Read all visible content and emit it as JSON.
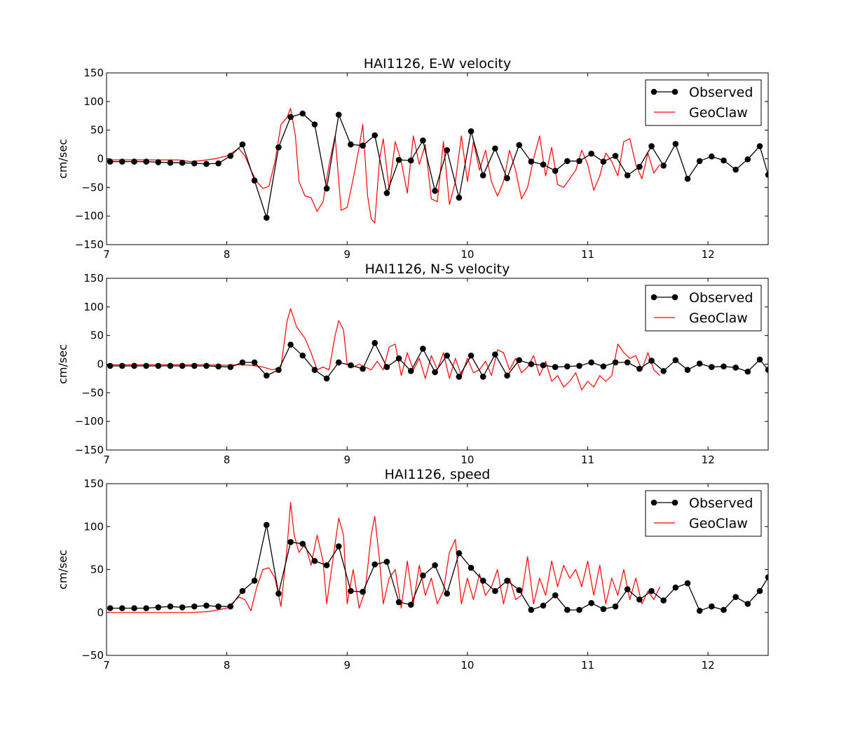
{
  "chart_data": [
    {
      "type": "line",
      "title": "HAI1126, E-W velocity",
      "ylabel": "cm/sec",
      "xlim": [
        7,
        12.5
      ],
      "ylim": [
        -150,
        150
      ],
      "xticks": [
        7,
        8,
        9,
        10,
        11,
        12
      ],
      "yticks": [
        -150,
        -100,
        -50,
        0,
        50,
        100,
        150
      ],
      "legend": {
        "placement": "top-right",
        "entries": [
          "Observed",
          "GeoClaw"
        ]
      },
      "series": [
        {
          "name": "Observed",
          "color": "#000000",
          "marker": "circle",
          "x": [
            7.03,
            7.13,
            7.23,
            7.33,
            7.43,
            7.53,
            7.63,
            7.73,
            7.83,
            7.93,
            8.03,
            8.13,
            8.23,
            8.33,
            8.43,
            8.53,
            8.63,
            8.73,
            8.83,
            8.93,
            9.03,
            9.13,
            9.23,
            9.33,
            9.43,
            9.53,
            9.63,
            9.73,
            9.83,
            9.93,
            10.03,
            10.13,
            10.23,
            10.33,
            10.43,
            10.53,
            10.63,
            10.73,
            10.83,
            10.93,
            11.03,
            11.13,
            11.23,
            11.33,
            11.43,
            11.53,
            11.63,
            11.73,
            11.83,
            11.93,
            12.03,
            12.13,
            12.23,
            12.33,
            12.43,
            12.5
          ],
          "y": [
            -5,
            -5,
            -5,
            -5,
            -6,
            -7,
            -7,
            -8,
            -9,
            -8,
            5,
            25,
            -38,
            -103,
            20,
            73,
            79,
            60,
            -52,
            77,
            25,
            23,
            41,
            -60,
            -2,
            -3,
            32,
            -56,
            15,
            -68,
            48,
            -29,
            18,
            -34,
            24,
            -5,
            -10,
            -21,
            -4,
            -4,
            9,
            -5,
            5,
            -29,
            -14,
            22,
            -12,
            26,
            -35,
            -4,
            4,
            -3,
            -19,
            -1,
            22,
            -28
          ]
        },
        {
          "name": "GeoClaw",
          "color": "#ff0000",
          "x": [
            7.0,
            7.2,
            7.4,
            7.6,
            7.7,
            7.8,
            7.9,
            8.0,
            8.1,
            8.15,
            8.2,
            8.25,
            8.3,
            8.35,
            8.4,
            8.45,
            8.5,
            8.53,
            8.57,
            8.6,
            8.65,
            8.7,
            8.75,
            8.8,
            8.85,
            8.9,
            8.95,
            9.0,
            9.05,
            9.1,
            9.13,
            9.17,
            9.2,
            9.23,
            9.27,
            9.3,
            9.35,
            9.4,
            9.45,
            9.5,
            9.55,
            9.6,
            9.65,
            9.7,
            9.75,
            9.8,
            9.85,
            9.9,
            9.95,
            10.0,
            10.05,
            10.1,
            10.15,
            10.2,
            10.25,
            10.3,
            10.35,
            10.4,
            10.45,
            10.5,
            10.55,
            10.6,
            10.65,
            10.7,
            10.75,
            10.8,
            10.85,
            10.9,
            10.95,
            11.0,
            11.05,
            11.1,
            11.15,
            11.2,
            11.25,
            11.3,
            11.35,
            11.4,
            11.45,
            11.5,
            11.55,
            11.6
          ],
          "y": [
            -2,
            -2,
            -2,
            -2,
            -5,
            -3,
            0,
            5,
            18,
            5,
            -20,
            -40,
            -52,
            -48,
            -5,
            60,
            72,
            88,
            40,
            -40,
            -65,
            -68,
            -92,
            -75,
            -10,
            40,
            -90,
            -85,
            -35,
            20,
            60,
            -65,
            -105,
            -112,
            0,
            35,
            -55,
            30,
            -5,
            -60,
            40,
            -10,
            25,
            -70,
            -75,
            30,
            -80,
            -40,
            40,
            -40,
            30,
            -20,
            15,
            -40,
            -65,
            -40,
            15,
            -20,
            -70,
            -50,
            0,
            40,
            -30,
            20,
            -45,
            -50,
            -35,
            -20,
            15,
            -10,
            -55,
            -30,
            10,
            -5,
            -30,
            30,
            35,
            -10,
            -35,
            10,
            -25,
            -10
          ]
        }
      ]
    },
    {
      "type": "line",
      "title": "HAI1126, N-S velocity",
      "ylabel": "cm/sec",
      "xlim": [
        7,
        12.5
      ],
      "ylim": [
        -150,
        150
      ],
      "xticks": [
        7,
        8,
        9,
        10,
        11,
        12
      ],
      "yticks": [
        -150,
        -100,
        -50,
        0,
        50,
        100,
        150
      ],
      "legend": {
        "placement": "top-right",
        "entries": [
          "Observed",
          "GeoClaw"
        ]
      },
      "series": [
        {
          "name": "Observed",
          "color": "#000000",
          "marker": "circle",
          "x": [
            7.03,
            7.13,
            7.23,
            7.33,
            7.43,
            7.53,
            7.63,
            7.73,
            7.83,
            7.93,
            8.03,
            8.13,
            8.23,
            8.33,
            8.43,
            8.53,
            8.63,
            8.73,
            8.83,
            8.93,
            9.03,
            9.13,
            9.23,
            9.33,
            9.43,
            9.53,
            9.63,
            9.73,
            9.83,
            9.93,
            10.03,
            10.13,
            10.23,
            10.33,
            10.43,
            10.53,
            10.63,
            10.73,
            10.83,
            10.93,
            11.03,
            11.13,
            11.23,
            11.33,
            11.43,
            11.53,
            11.63,
            11.73,
            11.83,
            11.93,
            12.03,
            12.13,
            12.23,
            12.33,
            12.43,
            12.5
          ],
          "y": [
            -3,
            -3,
            -3,
            -3,
            -3,
            -3,
            -3,
            -3,
            -3,
            -4,
            -5,
            3,
            3,
            -20,
            -10,
            34,
            15,
            -10,
            -25,
            3,
            -2,
            -8,
            37,
            -5,
            10,
            -12,
            27,
            -14,
            15,
            -22,
            15,
            -22,
            17,
            -20,
            7,
            0,
            -2,
            -5,
            -4,
            -3,
            3,
            -4,
            3,
            3,
            -8,
            6,
            -12,
            7,
            -10,
            1,
            -5,
            -4,
            -6,
            -13,
            8,
            -10
          ]
        },
        {
          "name": "GeoClaw",
          "color": "#ff0000",
          "x": [
            7.0,
            7.4,
            7.8,
            8.0,
            8.1,
            8.2,
            8.3,
            8.38,
            8.45,
            8.5,
            8.53,
            8.58,
            8.65,
            8.7,
            8.75,
            8.8,
            8.85,
            8.9,
            8.93,
            8.97,
            9.0,
            9.05,
            9.1,
            9.15,
            9.2,
            9.25,
            9.3,
            9.35,
            9.4,
            9.45,
            9.5,
            9.55,
            9.6,
            9.65,
            9.7,
            9.75,
            9.8,
            9.85,
            9.9,
            9.95,
            10.0,
            10.05,
            10.1,
            10.15,
            10.2,
            10.25,
            10.3,
            10.35,
            10.4,
            10.45,
            10.5,
            10.55,
            10.6,
            10.65,
            10.7,
            10.75,
            10.8,
            10.85,
            10.9,
            10.95,
            11.0,
            11.05,
            11.1,
            11.15,
            11.2,
            11.25,
            11.3,
            11.35,
            11.4,
            11.45,
            11.5,
            11.55,
            11.6
          ],
          "y": [
            -1,
            -1,
            -1,
            -2,
            -1,
            -2,
            -5,
            -10,
            -5,
            75,
            97,
            65,
            45,
            20,
            -10,
            -5,
            -10,
            50,
            76,
            60,
            0,
            -5,
            0,
            -5,
            -10,
            5,
            -10,
            30,
            35,
            -20,
            20,
            -10,
            10,
            -25,
            15,
            -10,
            20,
            -25,
            10,
            -20,
            10,
            -15,
            -10,
            5,
            -20,
            25,
            20,
            -10,
            10,
            -15,
            -5,
            15,
            -20,
            5,
            -30,
            -20,
            -40,
            -30,
            -15,
            -45,
            -30,
            -40,
            -20,
            -30,
            -20,
            35,
            20,
            10,
            15,
            -10,
            20,
            -10,
            -20
          ]
        }
      ]
    },
    {
      "type": "line",
      "title": "HAI1126, speed",
      "ylabel": "cm/sec",
      "xlim": [
        7,
        12.5
      ],
      "ylim": [
        -50,
        150
      ],
      "xticks": [
        7,
        8,
        9,
        10,
        11,
        12
      ],
      "yticks": [
        -50,
        0,
        50,
        100,
        150
      ],
      "legend": {
        "placement": "top-right",
        "entries": [
          "Observed",
          "GeoClaw"
        ]
      },
      "series": [
        {
          "name": "Observed",
          "color": "#000000",
          "marker": "circle",
          "x": [
            7.03,
            7.13,
            7.23,
            7.33,
            7.43,
            7.53,
            7.63,
            7.73,
            7.83,
            7.93,
            8.03,
            8.13,
            8.23,
            8.33,
            8.43,
            8.53,
            8.63,
            8.73,
            8.83,
            8.93,
            9.03,
            9.13,
            9.23,
            9.33,
            9.43,
            9.53,
            9.63,
            9.73,
            9.83,
            9.93,
            10.03,
            10.13,
            10.23,
            10.33,
            10.43,
            10.53,
            10.63,
            10.73,
            10.83,
            10.93,
            11.03,
            11.13,
            11.23,
            11.33,
            11.43,
            11.53,
            11.63,
            11.73,
            11.83,
            11.93,
            12.03,
            12.13,
            12.23,
            12.33,
            12.43,
            12.5
          ],
          "y": [
            5,
            5,
            5,
            5,
            6,
            7,
            6,
            7,
            8,
            7,
            7,
            25,
            37,
            102,
            22,
            82,
            80,
            60,
            55,
            77,
            25,
            24,
            56,
            59,
            12,
            9,
            43,
            55,
            22,
            69,
            52,
            37,
            25,
            37,
            26,
            3,
            8,
            20,
            3,
            3,
            11,
            4,
            7,
            27,
            15,
            25,
            14,
            29,
            34,
            2,
            7,
            3,
            18,
            10,
            25,
            41
          ]
        },
        {
          "name": "GeoClaw",
          "color": "#ff0000",
          "x": [
            7.0,
            7.4,
            7.7,
            7.85,
            8.0,
            8.1,
            8.15,
            8.2,
            8.25,
            8.3,
            8.35,
            8.4,
            8.45,
            8.5,
            8.53,
            8.56,
            8.6,
            8.65,
            8.7,
            8.75,
            8.8,
            8.83,
            8.88,
            8.93,
            8.97,
            9.0,
            9.05,
            9.1,
            9.15,
            9.2,
            9.23,
            9.27,
            9.3,
            9.35,
            9.4,
            9.45,
            9.5,
            9.55,
            9.6,
            9.65,
            9.7,
            9.75,
            9.8,
            9.85,
            9.9,
            9.95,
            10.0,
            10.05,
            10.1,
            10.15,
            10.2,
            10.25,
            10.3,
            10.35,
            10.4,
            10.45,
            10.5,
            10.55,
            10.6,
            10.65,
            10.7,
            10.75,
            10.8,
            10.85,
            10.9,
            10.95,
            11.0,
            11.05,
            11.1,
            11.15,
            11.2,
            11.25,
            11.3,
            11.35,
            11.4,
            11.45,
            11.5,
            11.55,
            11.6
          ],
          "y": [
            0,
            0,
            0,
            1,
            5,
            18,
            15,
            2,
            30,
            50,
            52,
            40,
            7,
            75,
            128,
            90,
            70,
            80,
            55,
            90,
            60,
            10,
            60,
            110,
            90,
            10,
            50,
            5,
            25,
            90,
            112,
            60,
            10,
            40,
            50,
            5,
            60,
            10,
            55,
            20,
            40,
            10,
            25,
            70,
            85,
            10,
            40,
            15,
            45,
            20,
            30,
            50,
            10,
            40,
            15,
            20,
            65,
            10,
            40,
            20,
            60,
            30,
            55,
            40,
            50,
            30,
            60,
            20,
            55,
            10,
            40,
            20,
            50,
            15,
            40,
            10,
            25,
            15,
            30
          ]
        }
      ]
    }
  ]
}
